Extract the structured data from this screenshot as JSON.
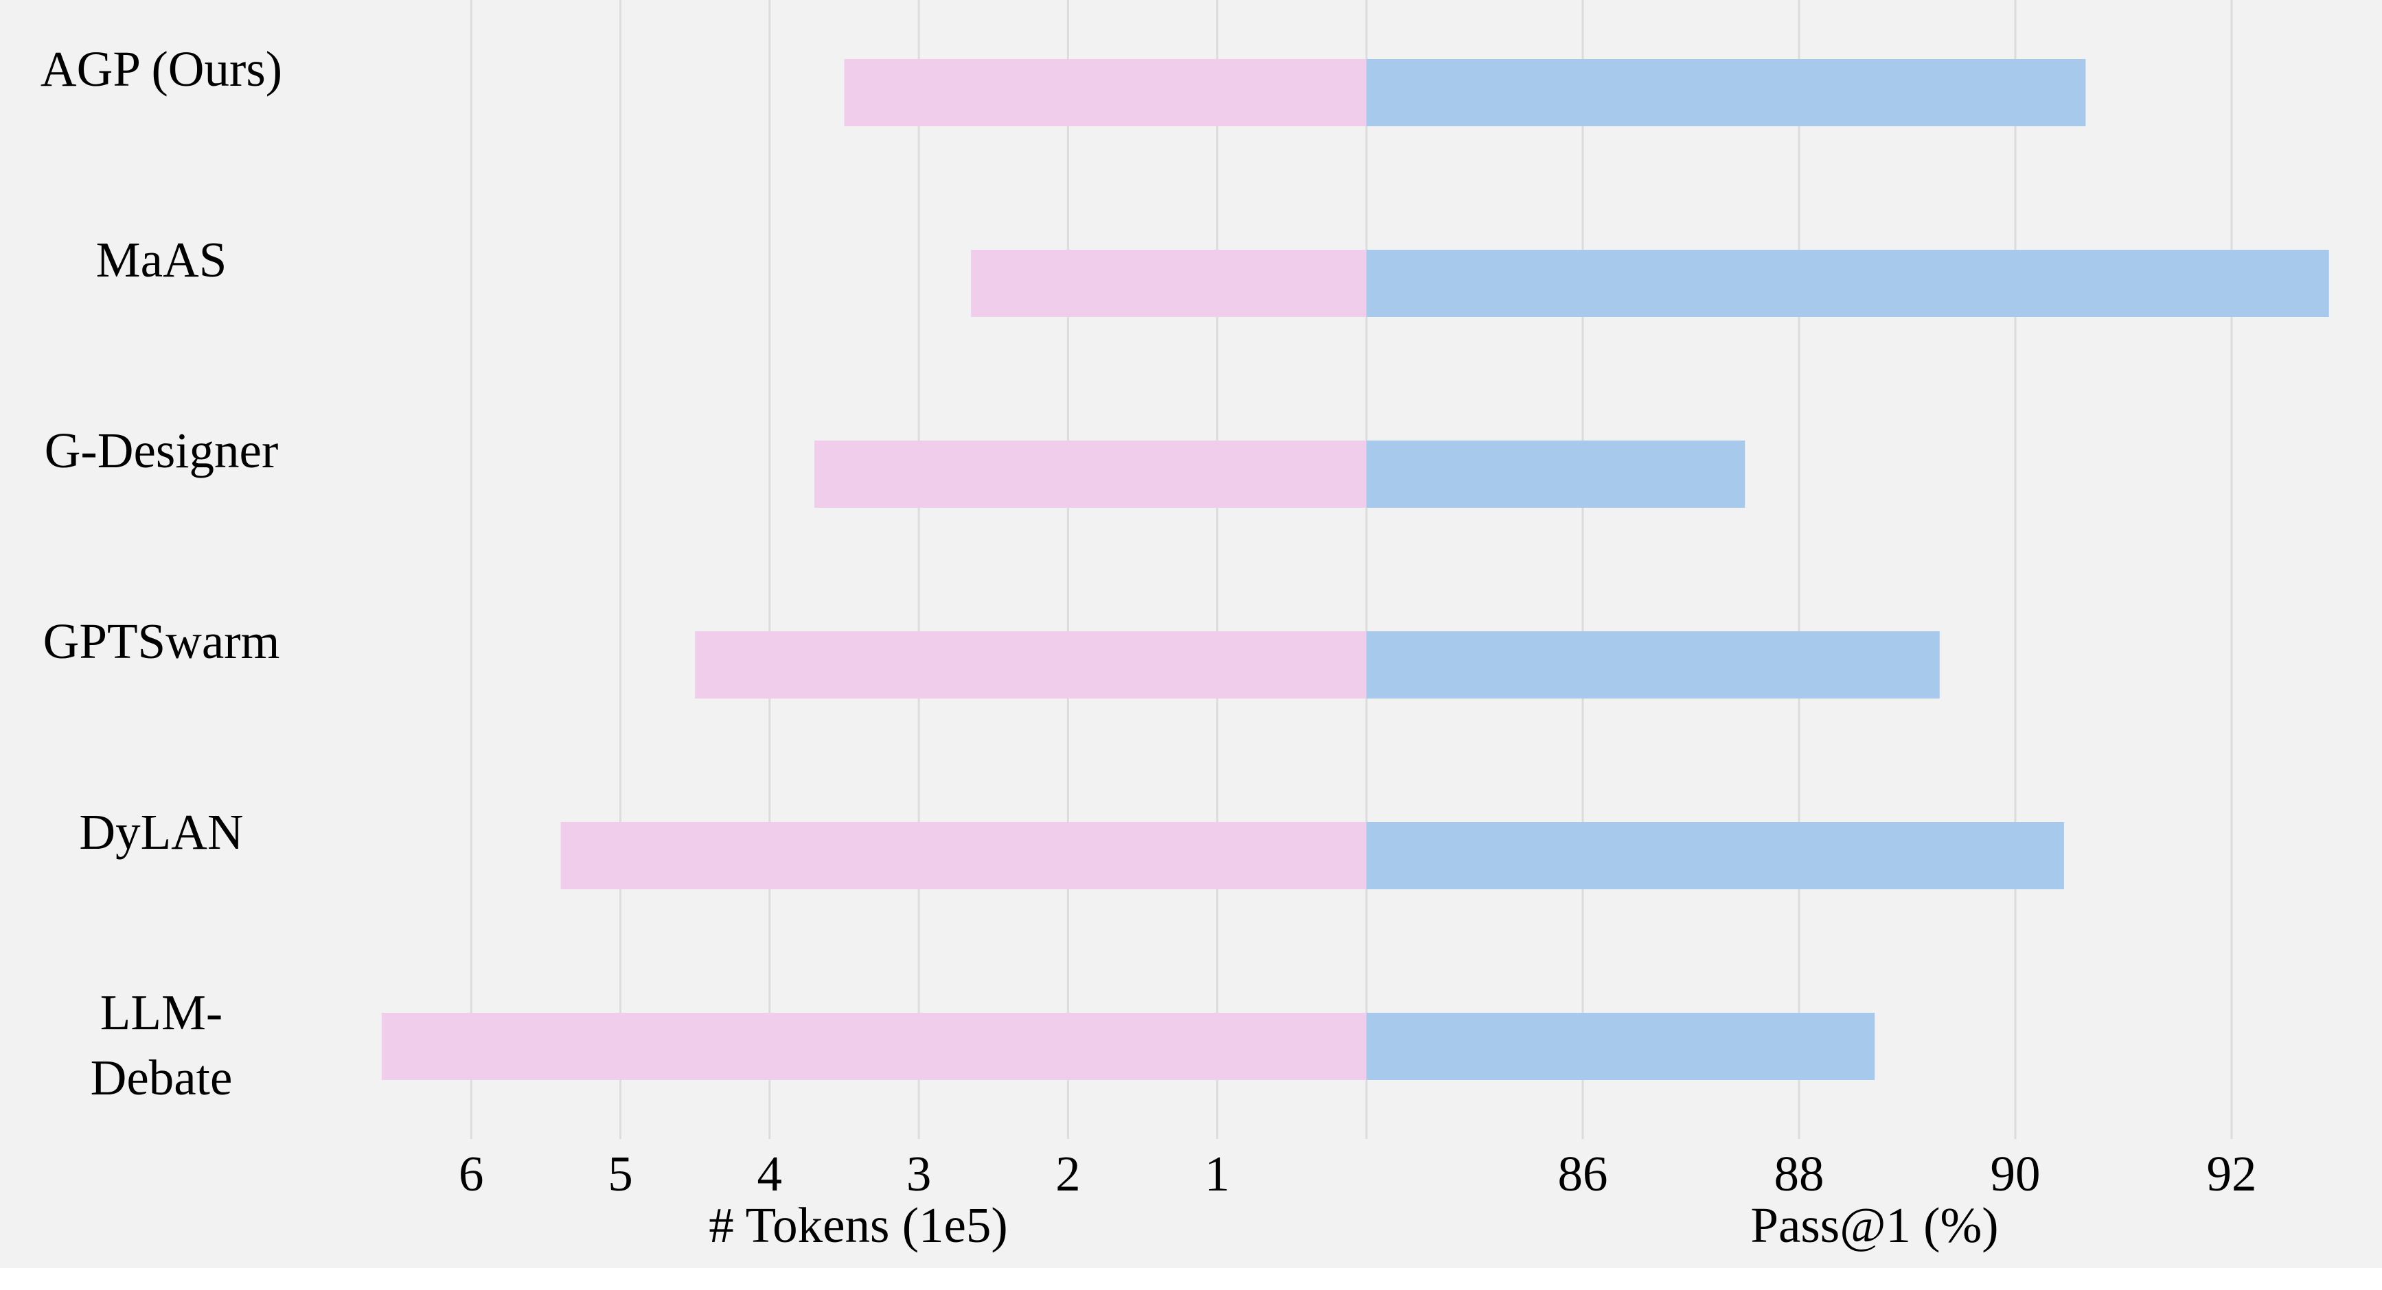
{
  "colors": {
    "background": "#f2f2f2",
    "tokens_bar": "#f1cdec",
    "pass_bar": "#a7c9ec",
    "grid": "#dcdcdc"
  },
  "chart_data": {
    "type": "bar",
    "orientation": "horizontal",
    "layout": "diverging back-to-back",
    "categories": [
      "AGP (Ours)",
      "MaAS",
      "G-Designer",
      "GPTSwarm",
      "DyLAN",
      "LLM-Debate"
    ],
    "left_panel": {
      "xlabel": "# Tokens (1e5)",
      "ticks": [
        "6",
        "5",
        "4",
        "3",
        "2",
        "1"
      ],
      "tick_values": [
        6,
        5,
        4,
        3,
        2,
        1
      ],
      "xlim": [
        0,
        6.6
      ],
      "direction": "reversed",
      "values": [
        3.5,
        2.65,
        3.7,
        4.5,
        5.4,
        6.6
      ]
    },
    "right_panel": {
      "xlabel": "Pass@1 (%)",
      "ticks": [
        "86",
        "88",
        "90",
        "92"
      ],
      "tick_values": [
        86,
        88,
        90,
        92
      ],
      "xlim": [
        84,
        92.9
      ],
      "values": [
        90.65,
        92.9,
        87.5,
        89.3,
        90.45,
        88.7
      ]
    },
    "grid": true,
    "legend": "none"
  }
}
